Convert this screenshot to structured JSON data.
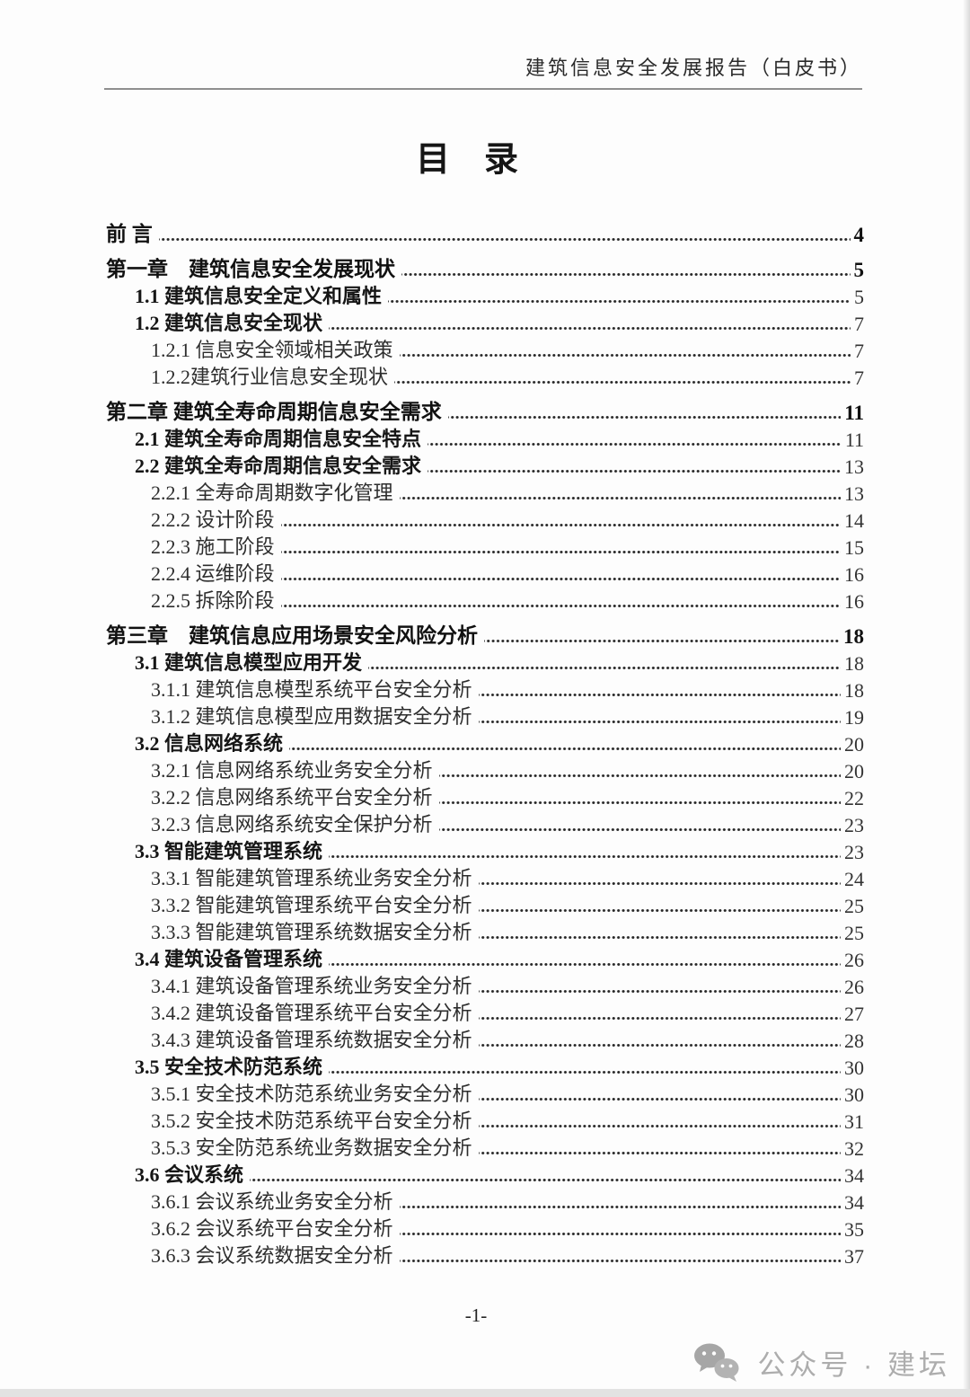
{
  "header": {
    "title": "建筑信息安全发展报告（白皮书）"
  },
  "toc_title": "目　录",
  "toc": {
    "entries": [
      {
        "level": 0,
        "chapter": true,
        "label": "前 言",
        "page": "4"
      },
      {
        "level": 0,
        "chapter": true,
        "label": "第一章　建筑信息安全发展现状",
        "page": "5"
      },
      {
        "level": 1,
        "chapter": false,
        "label": "1.1 建筑信息安全定义和属性",
        "page": "5"
      },
      {
        "level": 1,
        "chapter": false,
        "label": "1.2 建筑信息安全现状",
        "page": "7"
      },
      {
        "level": 2,
        "chapter": false,
        "label": "1.2.1 信息安全领域相关政策",
        "page": "7"
      },
      {
        "level": 2,
        "chapter": false,
        "label": "1.2.2建筑行业信息安全现状",
        "page": "7"
      },
      {
        "level": 0,
        "chapter": true,
        "label": "第二章 建筑全寿命周期信息安全需求",
        "page": "11"
      },
      {
        "level": 1,
        "chapter": false,
        "label": "2.1 建筑全寿命周期信息安全特点",
        "page": "11"
      },
      {
        "level": 1,
        "chapter": false,
        "label": "2.2 建筑全寿命周期信息安全需求",
        "page": "13"
      },
      {
        "level": 2,
        "chapter": false,
        "label": "2.2.1 全寿命周期数字化管理",
        "page": "13"
      },
      {
        "level": 2,
        "chapter": false,
        "label": "2.2.2 设计阶段",
        "page": "14"
      },
      {
        "level": 2,
        "chapter": false,
        "label": "2.2.3 施工阶段",
        "page": "15"
      },
      {
        "level": 2,
        "chapter": false,
        "label": "2.2.4 运维阶段",
        "page": "16"
      },
      {
        "level": 2,
        "chapter": false,
        "label": "2.2.5 拆除阶段",
        "page": "16"
      },
      {
        "level": 0,
        "chapter": true,
        "label": "第三章　建筑信息应用场景安全风险分析",
        "page": "18"
      },
      {
        "level": 1,
        "chapter": false,
        "label": "3.1 建筑信息模型应用开发",
        "page": "18"
      },
      {
        "level": 2,
        "chapter": false,
        "label": "3.1.1 建筑信息模型系统平台安全分析",
        "page": "18"
      },
      {
        "level": 2,
        "chapter": false,
        "label": "3.1.2 建筑信息模型应用数据安全分析",
        "page": "19"
      },
      {
        "level": 1,
        "chapter": false,
        "label": "3.2 信息网络系统",
        "page": "20"
      },
      {
        "level": 2,
        "chapter": false,
        "label": "3.2.1 信息网络系统业务安全分析",
        "page": "20"
      },
      {
        "level": 2,
        "chapter": false,
        "label": "3.2.2 信息网络系统平台安全分析",
        "page": "22"
      },
      {
        "level": 2,
        "chapter": false,
        "label": "3.2.3 信息网络系统安全保护分析",
        "page": "23"
      },
      {
        "level": 1,
        "chapter": false,
        "label": "3.3 智能建筑管理系统",
        "page": "23"
      },
      {
        "level": 2,
        "chapter": false,
        "label": "3.3.1 智能建筑管理系统业务安全分析",
        "page": "24"
      },
      {
        "level": 2,
        "chapter": false,
        "label": "3.3.2 智能建筑管理系统平台安全分析",
        "page": "25"
      },
      {
        "level": 2,
        "chapter": false,
        "label": "3.3.3 智能建筑管理系统数据安全分析",
        "page": "25"
      },
      {
        "level": 1,
        "chapter": false,
        "label": "3.4 建筑设备管理系统",
        "page": "26"
      },
      {
        "level": 2,
        "chapter": false,
        "label": "3.4.1 建筑设备管理系统业务安全分析",
        "page": "26"
      },
      {
        "level": 2,
        "chapter": false,
        "label": "3.4.2 建筑设备管理系统平台安全分析",
        "page": "27"
      },
      {
        "level": 2,
        "chapter": false,
        "label": "3.4.3 建筑设备管理系统数据安全分析",
        "page": "28"
      },
      {
        "level": 1,
        "chapter": false,
        "label": "3.5 安全技术防范系统",
        "page": "30"
      },
      {
        "level": 2,
        "chapter": false,
        "label": "3.5.1 安全技术防范系统业务安全分析",
        "page": "30"
      },
      {
        "level": 2,
        "chapter": false,
        "label": "3.5.2 安全技术防范系统平台安全分析",
        "page": "31"
      },
      {
        "level": 2,
        "chapter": false,
        "label": "3.5.3 安全防范系统业务数据安全分析",
        "page": "32"
      },
      {
        "level": 1,
        "chapter": false,
        "label": "3.6 会议系统",
        "page": "34"
      },
      {
        "level": 2,
        "chapter": false,
        "label": "3.6.1 会议系统业务安全分析",
        "page": "34"
      },
      {
        "level": 2,
        "chapter": false,
        "label": "3.6.2 会议系统平台安全分析",
        "page": "35"
      },
      {
        "level": 2,
        "chapter": false,
        "label": "3.6.3 会议系统数据安全分析",
        "page": "37"
      }
    ]
  },
  "footer": {
    "page_number": "-1-"
  },
  "watermark": {
    "icon": "wechat-icon",
    "text": "公众号 · 建坛"
  },
  "colors": {
    "text": "#1c1c1c",
    "header_rule": "#8f8f8f",
    "watermark_gray": "#adadad"
  }
}
